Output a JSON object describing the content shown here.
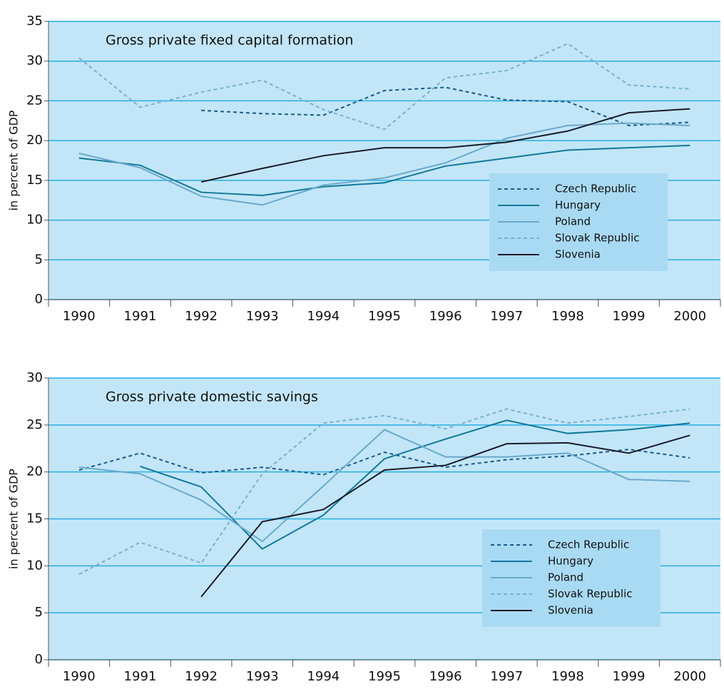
{
  "chart_data": [
    {
      "type": "line",
      "title": "Gross private fixed capital formation",
      "ylabel": "in percent of GDP",
      "categories": [
        "1990",
        "1991",
        "1992",
        "1993",
        "1994",
        "1995",
        "1996",
        "1997",
        "1998",
        "1999",
        "2000"
      ],
      "ylim": [
        0,
        35
      ],
      "yticks": [
        0,
        5,
        10,
        15,
        20,
        25,
        30,
        35
      ],
      "grid": true,
      "series": [
        {
          "name": "Czech Republic",
          "color": "#1a5a8a",
          "dashed": true,
          "values": [
            null,
            null,
            23.8,
            23.4,
            23.2,
            26.3,
            26.7,
            25.1,
            24.9,
            21.9,
            22.3
          ]
        },
        {
          "name": "Hungary",
          "color": "#117899",
          "dashed": false,
          "values": [
            17.8,
            16.9,
            13.5,
            13.1,
            14.2,
            14.7,
            16.8,
            17.8,
            18.8,
            19.1,
            19.4
          ]
        },
        {
          "name": "Poland",
          "color": "#6aa8cc",
          "dashed": false,
          "values": [
            18.4,
            16.6,
            13.0,
            11.9,
            14.4,
            15.3,
            17.2,
            20.3,
            21.9,
            22.2,
            21.9
          ]
        },
        {
          "name": "Slovak Republic",
          "color": "#78b0cc",
          "dashed": true,
          "values": [
            30.4,
            24.2,
            26.1,
            27.6,
            23.9,
            21.4,
            27.9,
            28.8,
            32.2,
            27.0,
            26.5
          ]
        },
        {
          "name": "Slovenia",
          "color": "#1a1a2a",
          "dashed": false,
          "values": [
            null,
            null,
            14.8,
            16.5,
            18.1,
            19.1,
            19.1,
            19.8,
            21.2,
            23.5,
            24.0
          ]
        }
      ]
    },
    {
      "type": "line",
      "title": "Gross private domestic savings",
      "ylabel": "in percent of GDP",
      "categories": [
        "1990",
        "1991",
        "1992",
        "1993",
        "1994",
        "1995",
        "1996",
        "1997",
        "1998",
        "1999",
        "2000"
      ],
      "ylim": [
        0,
        30
      ],
      "yticks": [
        0,
        5,
        10,
        15,
        20,
        25,
        30
      ],
      "grid": true,
      "series": [
        {
          "name": "Czech Republic",
          "color": "#1a5a8a",
          "dashed": true,
          "values": [
            20.2,
            22.0,
            19.9,
            20.5,
            19.7,
            22.1,
            20.5,
            21.3,
            21.7,
            22.4,
            21.5
          ]
        },
        {
          "name": "Hungary",
          "color": "#117899",
          "dashed": false,
          "values": [
            null,
            20.6,
            18.4,
            11.8,
            15.4,
            21.4,
            23.5,
            25.5,
            24.1,
            24.5,
            25.2
          ]
        },
        {
          "name": "Poland",
          "color": "#6aa8cc",
          "dashed": false,
          "values": [
            20.5,
            19.8,
            17.0,
            12.6,
            18.5,
            24.5,
            21.6,
            21.6,
            22.0,
            19.2,
            19.0
          ]
        },
        {
          "name": "Slovak Republic",
          "color": "#78b0cc",
          "dashed": true,
          "values": [
            9.1,
            12.5,
            10.3,
            19.8,
            25.2,
            26.0,
            24.6,
            26.7,
            25.2,
            25.9,
            26.7
          ]
        },
        {
          "name": "Slovenia",
          "color": "#1a1a2a",
          "dashed": false,
          "values": [
            null,
            null,
            6.7,
            14.7,
            16.0,
            20.2,
            20.7,
            23.0,
            23.1,
            22.0,
            23.9
          ]
        }
      ]
    }
  ]
}
